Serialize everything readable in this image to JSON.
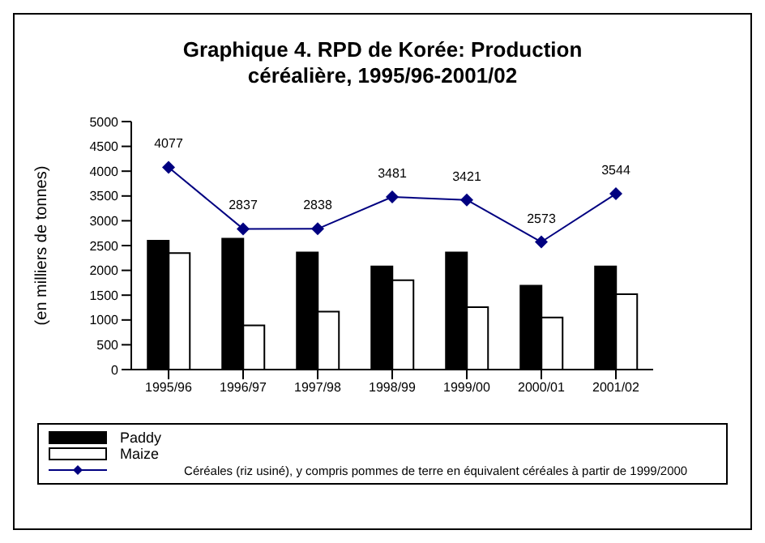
{
  "chart_data": {
    "type": "bar",
    "title": "Graphique 4. RPD de Korée: Production céréalière, 1995/96-2001/02",
    "ylabel": "(en milliers de tonnes)",
    "categories": [
      "1995/96",
      "1996/97",
      "1997/98",
      "1998/99",
      "1999/00",
      "2000/01",
      "2001/02"
    ],
    "series": [
      {
        "name": "Paddy",
        "color": "#000000",
        "values": [
          2600,
          2640,
          2360,
          2080,
          2360,
          1690,
          2080
        ]
      },
      {
        "name": "Maize",
        "color": "#ffffff",
        "values": [
          2350,
          890,
          1170,
          1800,
          1260,
          1050,
          1520
        ]
      },
      {
        "type": "line",
        "color": "#000080",
        "values": [
          4077,
          2837,
          2838,
          3481,
          3421,
          2573,
          3544
        ],
        "value_labels": [
          "4077",
          "2837",
          "2838",
          "3481",
          "3421",
          "2573",
          "3544"
        ]
      }
    ],
    "ylim": [
      0,
      5000
    ],
    "yticks": [
      0,
      500,
      1000,
      1500,
      2000,
      2500,
      3000,
      3500,
      4000,
      4500,
      5000
    ],
    "grid": false,
    "legend": "bottom",
    "marker": "diamond",
    "line_style": "solid",
    "annotations": [
      "Céréales (riz usiné), y compris pommes de terre en équivalent céréales à partir de 1999/2000"
    ]
  }
}
